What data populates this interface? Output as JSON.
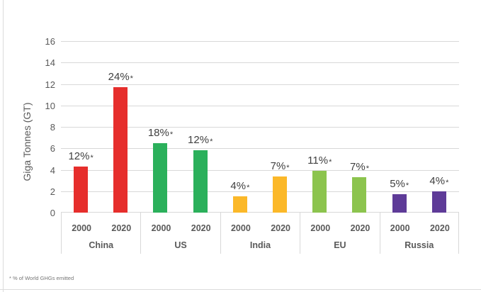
{
  "chart_data": {
    "type": "bar",
    "title": "",
    "ylabel": "Giga Tonnes (GT)",
    "ylim": [
      0,
      16
    ],
    "ytick_step": 2,
    "yticks": [
      0,
      2,
      4,
      6,
      8,
      10,
      12,
      14,
      16
    ],
    "grid": true,
    "legend": "none",
    "categories": [
      "China",
      "US",
      "India",
      "EU",
      "Russia"
    ],
    "series_labels": [
      "2000",
      "2020"
    ],
    "groups": [
      {
        "country": "China",
        "color": "#e62e2c",
        "bars": [
          {
            "year": "2000",
            "value": 4.3,
            "label": "12%*"
          },
          {
            "year": "2020",
            "value": 11.7,
            "label": "24%*"
          }
        ]
      },
      {
        "country": "US",
        "color": "#2bb05b",
        "bars": [
          {
            "year": "2000",
            "value": 6.5,
            "label": "18%*"
          },
          {
            "year": "2020",
            "value": 5.8,
            "label": "12%*"
          }
        ]
      },
      {
        "country": "India",
        "color": "#fbb829",
        "bars": [
          {
            "year": "2000",
            "value": 1.5,
            "label": "4%*"
          },
          {
            "year": "2020",
            "value": 3.4,
            "label": "7%*"
          }
        ]
      },
      {
        "country": "EU",
        "color": "#8cc44e",
        "bars": [
          {
            "year": "2000",
            "value": 3.9,
            "label": "11%*"
          },
          {
            "year": "2020",
            "value": 3.3,
            "label": "7%*"
          }
        ]
      },
      {
        "country": "Russia",
        "color": "#5e3b98",
        "bars": [
          {
            "year": "2000",
            "value": 1.7,
            "label": "5%*"
          },
          {
            "year": "2020",
            "value": 2.0,
            "label": "4%*"
          }
        ]
      }
    ]
  },
  "footnote": "* % of World GHGs emitted",
  "colors": {
    "grid": "#d8d8d8",
    "separator": "#d8d8d8",
    "frame": "#dcdcdc",
    "tick_text": "#595959",
    "category_text": "#595959",
    "bar_label_text": "#3f3f3f",
    "footnote_text": "#757575",
    "background": "#ffffff"
  }
}
